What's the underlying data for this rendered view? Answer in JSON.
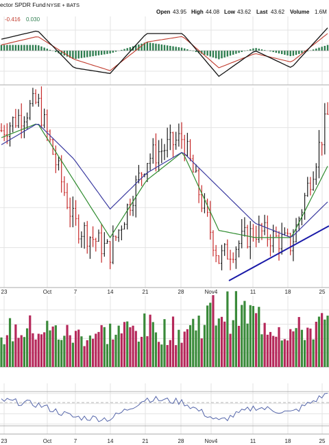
{
  "header": {
    "fund_name": "ector SPDR Fund",
    "exchange": "NYSE + BATS",
    "open_label": "Open",
    "open": "43.95",
    "high_label": "High",
    "high": "44.08",
    "low_label": "Low",
    "low": "43.62",
    "last_label": "Last",
    "last": "43.62",
    "volume_label": "Volume",
    "volume": "1.6M"
  },
  "macd_legend": {
    "macd": "-0.416",
    "signal": "0.030"
  },
  "colors": {
    "up": "#2e7d32",
    "down": "#c62828",
    "ma_fast": "#2e8b2e",
    "ma_slow": "#3a3aa0",
    "trendline": "#1a1aa8",
    "macd": "#111111",
    "signal": "#c0392b",
    "histogram": "#2e7d4f",
    "rsi": "#5566aa",
    "vol_up": "#3a8a3a",
    "vol_down": "#b5285a",
    "grid": "#e3e3e3"
  },
  "x_ticks": [
    "23",
    "Oct",
    "7",
    "14",
    "21",
    "28",
    "Nov4",
    "11",
    "18",
    "25"
  ],
  "chart_data": [
    {
      "type": "line",
      "title": "",
      "note": "price panel: daily OHLC bars with two moving averages and a rising support trendline",
      "x": [
        "23",
        "Oct",
        "7",
        "14",
        "21",
        "28",
        "Nov4",
        "11",
        "18",
        "25"
      ],
      "series": [
        {
          "values": [
            44.4,
            44.8,
            43.1,
            42.7,
            44.0,
            44.3,
            42.6,
            43.0,
            42.8,
            44.6
          ]
        },
        {
          "values": [
            44.3,
            44.5,
            43.7,
            42.9,
            43.7,
            44.1,
            43.0,
            42.9,
            42.9,
            43.9
          ]
        },
        {
          "values": [
            44.2,
            44.5,
            44.0,
            43.3,
            43.8,
            44.1,
            43.6,
            43.1,
            42.9,
            43.4
          ]
        }
      ]
    },
    {
      "type": "bar",
      "title": "",
      "note": "volume panel",
      "x": [
        "23",
        "Oct",
        "7",
        "14",
        "21",
        "28",
        "Nov4",
        "11",
        "18",
        "25"
      ],
      "values": [
        0.9,
        1.0,
        0.8,
        0.9,
        1.0,
        0.9,
        1.5,
        1.3,
        0.9,
        1.1
      ]
    },
    {
      "type": "line",
      "title": "",
      "note": "MACD panel",
      "legend": [
        "-0.416",
        "0.030"
      ],
      "x": [
        "23",
        "Oct",
        "7",
        "14",
        "21",
        "28",
        "Nov4",
        "11",
        "18",
        "25"
      ],
      "series": [
        {
          "values": [
            0.2,
            0.35,
            -0.3,
            -0.4,
            0.3,
            0.3,
            -0.45,
            0.0,
            -0.3,
            0.4
          ]
        },
        {
          "values": [
            0.1,
            0.25,
            -0.15,
            -0.35,
            0.15,
            0.25,
            -0.3,
            -0.05,
            -0.2,
            0.3
          ]
        }
      ]
    },
    {
      "type": "line",
      "title": "",
      "note": "oscillator panel",
      "x": [
        "23",
        "Oct",
        "7",
        "14",
        "21",
        "28",
        "Nov4",
        "11",
        "18",
        "25"
      ],
      "series": [
        {
          "values": [
            60,
            55,
            40,
            38,
            62,
            58,
            35,
            52,
            45,
            68
          ]
        }
      ]
    }
  ]
}
